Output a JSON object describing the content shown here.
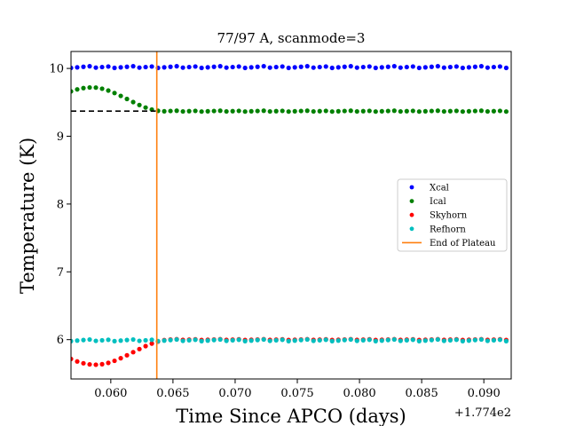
{
  "chart_data": {
    "type": "scatter",
    "title": "77/97 A, scanmode=3",
    "xlabel": "Time Since APCO (days)",
    "ylabel": "Temperature (K)",
    "x_offset_label": "+1.774e2",
    "xlim": [
      0.0568,
      0.0922
    ],
    "ylim": [
      5.42,
      10.25
    ],
    "x_ticks": [
      0.06,
      0.065,
      0.07,
      0.075,
      0.08,
      0.085,
      0.09
    ],
    "x_tick_labels": [
      "0.060",
      "0.065",
      "0.070",
      "0.075",
      "0.080",
      "0.085",
      "0.090"
    ],
    "y_ticks": [
      6,
      7,
      8,
      9,
      10
    ],
    "y_tick_labels": [
      "6",
      "7",
      "8",
      "9",
      "10"
    ],
    "grid": false,
    "legend_position": "center-right",
    "x_start": 0.0568,
    "x_step": 0.0005,
    "n_points": 71,
    "series": [
      {
        "name": "Xcal",
        "color": "#0000ff",
        "marker": "dot",
        "kind": "flat",
        "level": 10.02
      },
      {
        "name": "Ical",
        "color": "#008000",
        "marker": "dot",
        "kind": "transient",
        "settled": 9.37,
        "peak": 9.72,
        "peak_x": 0.0585,
        "settle_x": 0.0642
      },
      {
        "name": "Skyhorn",
        "color": "#ff0000",
        "marker": "dot",
        "kind": "transient",
        "settled": 6.0,
        "peak": 5.63,
        "peak_x": 0.0588,
        "settle_x": 0.0648
      },
      {
        "name": "Refhorn",
        "color": "#00bfbf",
        "marker": "dot",
        "kind": "flat",
        "level": 5.99
      }
    ],
    "reference_line": {
      "y": 9.37,
      "x_end": 0.0636,
      "style": "dashed",
      "color": "#000000"
    },
    "vertical_line": {
      "name": "End of Plateau",
      "x": 0.0637,
      "color": "#ff7f0e"
    }
  }
}
